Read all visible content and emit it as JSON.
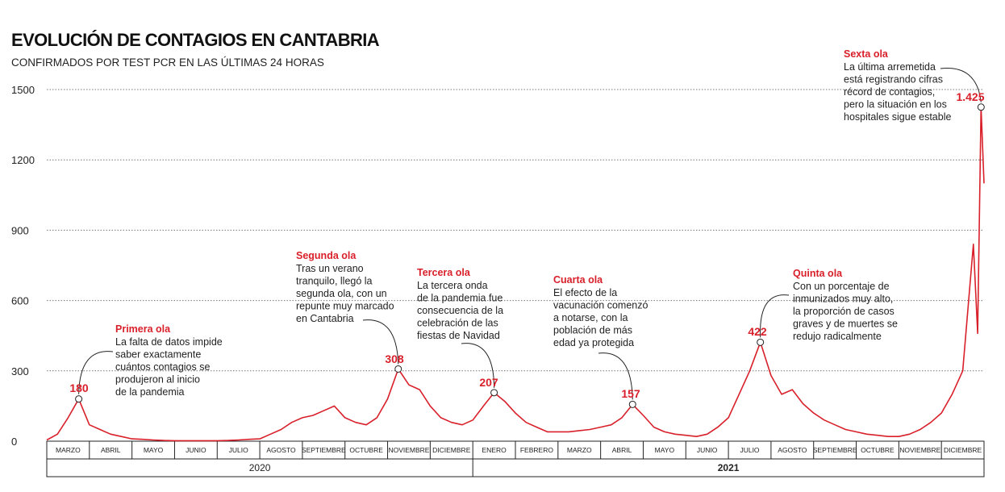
{
  "chart_data": {
    "type": "line",
    "title": "EVOLUCIÓN DE CONTAGIOS EN CANTABRIA",
    "subtitle": "CONFIRMADOS POR TEST PCR EN LAS ÚLTIMAS 24 HORAS",
    "categories": [
      "MARZO",
      "ABRIL",
      "MAYO",
      "JUNIO",
      "JULIO",
      "AGOSTO",
      "SEPTIEMBRE",
      "OCTUBRE",
      "NOVIEMBRE",
      "DICIEMBRE",
      "ENERO",
      "FEBRERO",
      "MARZO",
      "ABRIL",
      "MAYO",
      "JUNIO",
      "JULIO",
      "AGOSTO",
      "SEPTIEMBRE",
      "OCTUBRE",
      "NOVIEMBRE",
      "DICIEMBRE"
    ],
    "year_groups": [
      {
        "label": "2020",
        "months": 10
      },
      {
        "label": "2021",
        "months": 12
      }
    ],
    "x": [
      0,
      0.25,
      0.5,
      0.75,
      1,
      1.25,
      1.5,
      1.75,
      2,
      2.25,
      2.5,
      2.75,
      3,
      3.25,
      3.5,
      3.75,
      4,
      4.25,
      4.5,
      4.75,
      5,
      5.25,
      5.5,
      5.75,
      6,
      6.25,
      6.5,
      6.75,
      7,
      7.25,
      7.5,
      7.75,
      8,
      8.25,
      8.5,
      8.75,
      9,
      9.25,
      9.5,
      9.75,
      10,
      10.25,
      10.5,
      10.75,
      11,
      11.25,
      11.5,
      11.75,
      12,
      12.25,
      12.5,
      12.75,
      13,
      13.25,
      13.5,
      13.75,
      14,
      14.25,
      14.5,
      14.75,
      15,
      15.25,
      15.5,
      15.75,
      16,
      16.25,
      16.5,
      16.75,
      17,
      17.25,
      17.5,
      17.75,
      18,
      18.25,
      18.5,
      18.75,
      19,
      19.25,
      19.5,
      19.75,
      20,
      20.25,
      20.5,
      20.75,
      21,
      21.25,
      21.5,
      21.75,
      21.85,
      21.93,
      22
    ],
    "series": [
      {
        "name": "Contagios",
        "color": "#d9202a",
        "values": [
          5,
          30,
          100,
          180,
          70,
          50,
          30,
          20,
          10,
          8,
          5,
          3,
          2,
          2,
          2,
          2,
          2,
          3,
          5,
          8,
          10,
          30,
          50,
          80,
          100,
          110,
          130,
          150,
          100,
          80,
          70,
          100,
          180,
          308,
          240,
          220,
          150,
          100,
          80,
          70,
          90,
          150,
          207,
          170,
          120,
          80,
          60,
          40,
          40,
          40,
          45,
          50,
          60,
          70,
          100,
          157,
          110,
          60,
          40,
          30,
          25,
          20,
          30,
          60,
          100,
          200,
          300,
          422,
          280,
          200,
          220,
          160,
          120,
          90,
          70,
          50,
          40,
          30,
          25,
          20,
          20,
          30,
          50,
          80,
          120,
          200,
          300,
          840,
          460,
          1425,
          1100
        ]
      }
    ],
    "xlim": [
      0,
      22
    ],
    "ylim": [
      0,
      1500
    ],
    "yticks": [
      0,
      300,
      600,
      900,
      1200,
      1500
    ],
    "grid": true,
    "annotations": [
      {
        "title": "Primera ola",
        "text": [
          "La falta de datos impide",
          "saber exactamente",
          "cuántos contagios se",
          "produjeron al inicio",
          "de la pandemia"
        ],
        "x": 0.75,
        "value": 180,
        "label": "180"
      },
      {
        "title": "Segunda ola",
        "text": [
          "Tras un verano",
          "tranquilo, llegó la",
          "segunda ola, con un",
          "repunte muy marcado",
          "en Cantabria"
        ],
        "x": 8.25,
        "value": 308,
        "label": "308"
      },
      {
        "title": "Tercera ola",
        "text": [
          "La tercera onda",
          "de la pandemia fue",
          "consecuencia de la",
          "celebración de las",
          "fiestas de Navidad"
        ],
        "x": 10.5,
        "value": 207,
        "label": "207"
      },
      {
        "title": "Cuarta ola",
        "text": [
          "El efecto de la",
          "vacunación comenzó",
          "a notarse, con la",
          "población de más",
          "edad ya protegida"
        ],
        "x": 13.75,
        "value": 157,
        "label": "157"
      },
      {
        "title": "Quinta ola",
        "text": [
          "Con un porcentaje de",
          "inmunizados muy alto,",
          "la proporción de casos",
          "graves y de muertes se",
          "redujo radicalmente"
        ],
        "x": 16.75,
        "value": 422,
        "label": "422"
      },
      {
        "title": "Sexta ola",
        "text": [
          "La última arremetida",
          "está registrando cifras",
          "récord de contagios,",
          "pero la situación en los",
          "hospitales sigue estable"
        ],
        "x": 21.93,
        "value": 1425,
        "label": "1.425"
      }
    ]
  }
}
